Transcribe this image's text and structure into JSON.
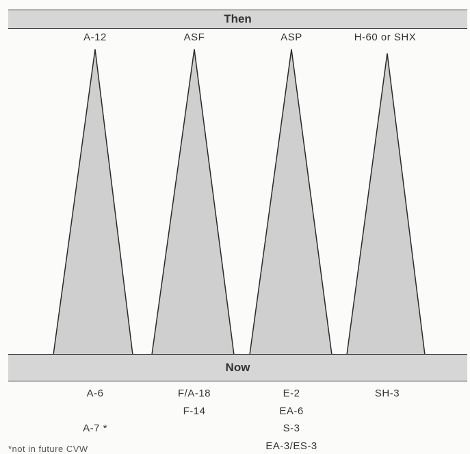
{
  "header": {
    "then_label": "Then",
    "now_label": "Now"
  },
  "columns": [
    {
      "then": "A-12",
      "now": [
        "A-6",
        "A-7 *"
      ]
    },
    {
      "then": "ASF",
      "now": [
        "F/A-18",
        "F-14"
      ]
    },
    {
      "then": "ASP",
      "now": [
        "E-2",
        "EA-6",
        "S-3",
        "EA-3/ES-3"
      ]
    },
    {
      "then": "H-60 or SHX",
      "now": [
        "SH-3"
      ]
    }
  ],
  "footnote": "*not in future CVW",
  "colors": {
    "triangle_fill": "#cfcfcf",
    "band_fill": "#d6d6d6",
    "line": "#2a2a2a"
  }
}
